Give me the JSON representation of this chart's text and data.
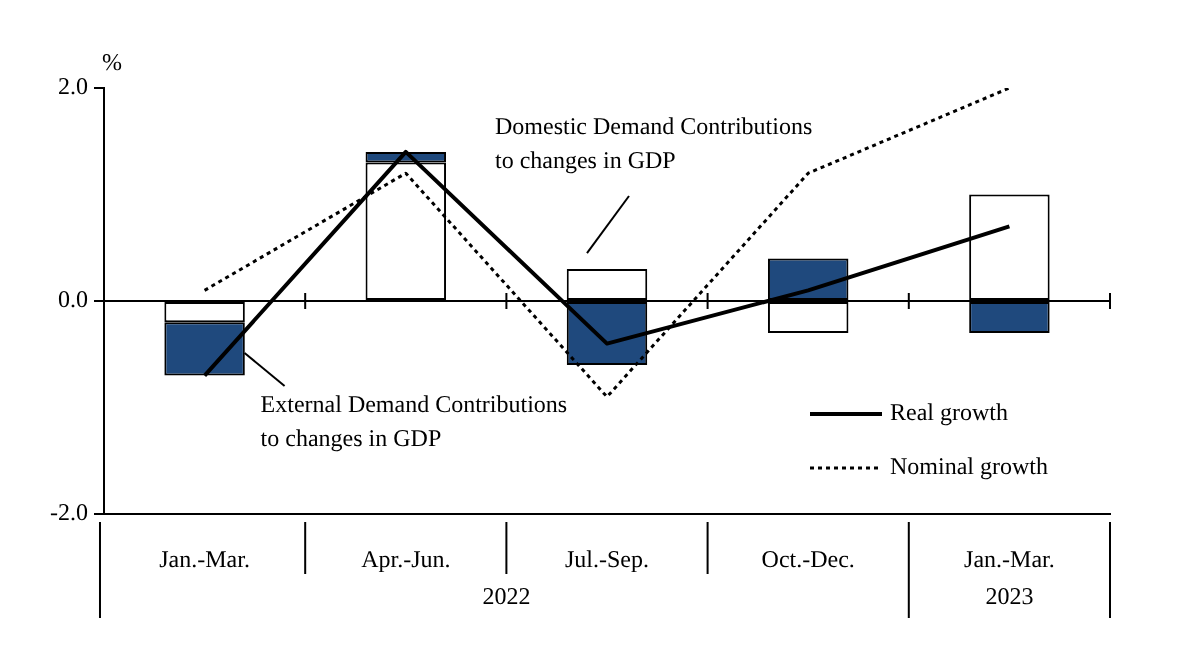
{
  "chart_data": {
    "type": "bar",
    "stacked": true,
    "ylabel": "%",
    "categories": [
      "Jan.-Mar.",
      "Apr.-Jun.",
      "Jul.-Sep.",
      "Oct.-Dec.",
      "Jan.-Mar."
    ],
    "annotations": [
      "2022",
      "2023"
    ],
    "series": [
      {
        "name": "Domestic Demand Contributions to changes in GDP",
        "color": "#ffffff",
        "values": [
          -0.2,
          1.3,
          0.3,
          -0.3,
          1.0
        ]
      },
      {
        "name": "External Demand Contributions to changes in GDP",
        "color": "#1f497d",
        "values": [
          -0.5,
          0.1,
          -0.6,
          0.4,
          -0.3
        ]
      },
      {
        "name": "Real growth",
        "type": "line",
        "color": "#000000",
        "line_style": "solid",
        "values": [
          -0.7,
          1.4,
          -0.4,
          0.1,
          0.7
        ]
      },
      {
        "name": "Nominal growth",
        "type": "line",
        "color": "#000000",
        "line_style": "dotted",
        "values": [
          0.1,
          1.2,
          -0.9,
          1.2,
          2.0
        ]
      }
    ],
    "ylim": [
      -2,
      2
    ],
    "yticks": [
      {
        "value": -2,
        "label": "-2.0"
      },
      {
        "value": 0,
        "label": "0.0"
      },
      {
        "value": 2,
        "label": "2.0"
      }
    ],
    "ref_lines": [
      {
        "axis": "y",
        "value": 0
      }
    ],
    "legend": "bottom right",
    "marker": "none",
    "grid": false
  }
}
